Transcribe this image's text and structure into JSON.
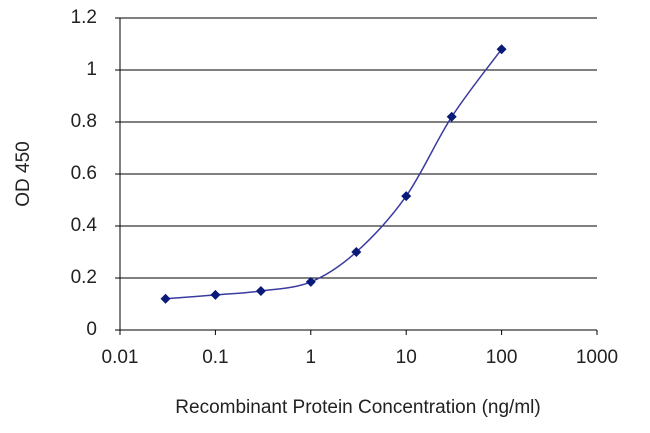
{
  "chart_data": {
    "type": "line",
    "x_label": "Recombinant Protein Concentration (ng/ml)",
    "y_label": "OD 450",
    "x": [
      0.03,
      0.1,
      0.3,
      1,
      3,
      10,
      30,
      100
    ],
    "series": [
      {
        "color": "#3a3aa0",
        "marker_color": "#0a1a78",
        "values": [
          0.12,
          0.135,
          0.15,
          0.185,
          0.3,
          0.515,
          0.82,
          1.08
        ]
      }
    ],
    "xscale": "log",
    "xlim": [
      0.01,
      1000
    ],
    "xticks": [
      0.01,
      0.1,
      1,
      10,
      100,
      1000
    ],
    "ylim": [
      0,
      1.2
    ],
    "yticks": [
      0,
      0.2,
      0.4,
      0.6,
      0.8,
      1,
      1.2
    ],
    "grid": true
  }
}
